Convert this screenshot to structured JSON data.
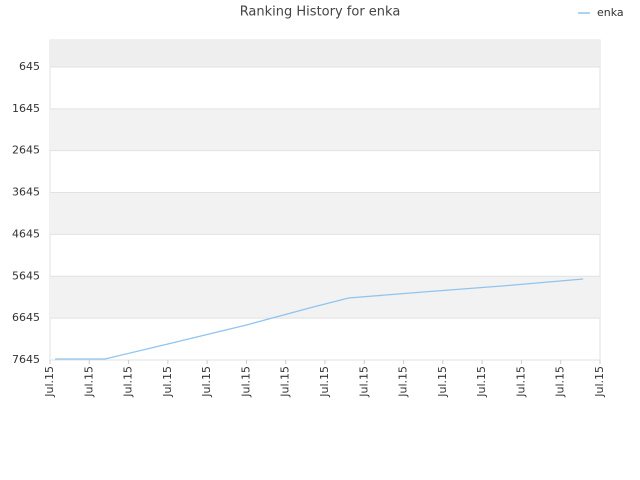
{
  "chart_data": {
    "type": "line",
    "title": "Ranking History for enka",
    "x": [
      0.13,
      1.4,
      3.0,
      5.0,
      6.7,
      7.6,
      9.5,
      11.5,
      13.57
    ],
    "series": [
      {
        "name": "enka",
        "color": "#90c4f0",
        "values": [
          7621,
          7621,
          7263,
          6809,
          6379,
          6164,
          6021,
          5878,
          5710
        ]
      }
    ],
    "xlim": [
      0,
      14
    ],
    "xticks": [
      {
        "value": 0,
        "label": "Jul.15"
      },
      {
        "value": 1,
        "label": "Jul.15"
      },
      {
        "value": 2,
        "label": "Jul.15"
      },
      {
        "value": 3,
        "label": "Jul.15"
      },
      {
        "value": 4,
        "label": "Jul.15"
      },
      {
        "value": 5,
        "label": "Jul.15"
      },
      {
        "value": 6,
        "label": "Jul.15"
      },
      {
        "value": 7,
        "label": "Jul.15"
      },
      {
        "value": 8,
        "label": "Jul.15"
      },
      {
        "value": 9,
        "label": "Jul.15"
      },
      {
        "value": 10,
        "label": "Jul.15"
      },
      {
        "value": 11,
        "label": "Jul.15"
      },
      {
        "value": 12,
        "label": "Jul.15"
      },
      {
        "value": 13,
        "label": "Jul.15"
      },
      {
        "value": 14,
        "label": "Jul.15"
      }
    ],
    "ylim": [
      7645,
      1
    ],
    "yticks": [
      645,
      1645,
      2645,
      3645,
      4645,
      5645,
      6645,
      7645
    ],
    "grid": true,
    "legend": "top-right"
  }
}
